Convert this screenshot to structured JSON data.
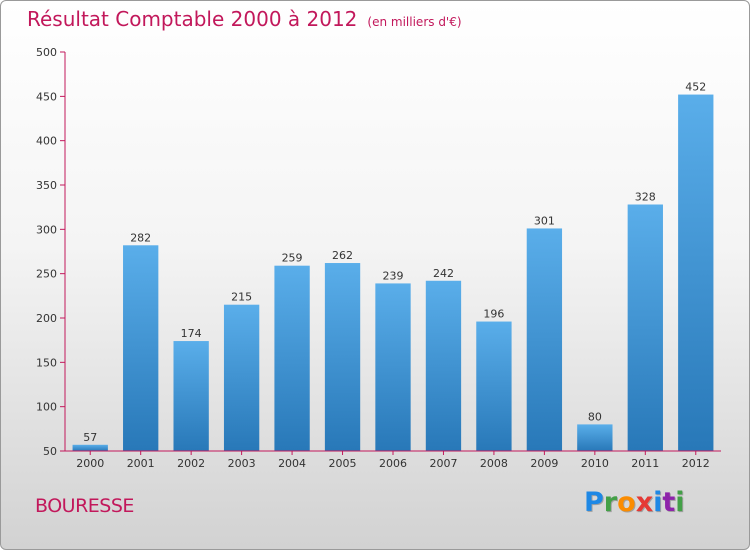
{
  "header": {
    "title": "Résultat Comptable 2000 à 2012",
    "subtitle": "(en milliers d'€)"
  },
  "footer": {
    "commune": "BOURESSE",
    "logo_letters": [
      "P",
      "r",
      "o",
      "x",
      "i",
      "t",
      "i"
    ],
    "logo_colors": [
      "#1e88e5",
      "#43a047",
      "#fb8c00",
      "#e53935",
      "#1e88e5",
      "#8e24aa",
      "#43a047"
    ]
  },
  "chart_data": {
    "type": "bar",
    "title": "Résultat Comptable 2000 à 2012",
    "subtitle": "(en milliers d'€)",
    "categories": [
      "2000",
      "2001",
      "2002",
      "2003",
      "2004",
      "2005",
      "2006",
      "2007",
      "2008",
      "2009",
      "2010",
      "2011",
      "2012"
    ],
    "values": [
      57,
      282,
      174,
      215,
      259,
      262,
      239,
      242,
      196,
      301,
      80,
      328,
      452
    ],
    "value_labels": [
      "57",
      "282",
      "174",
      "215",
      "259",
      "262",
      "239",
      "242",
      "196",
      "301",
      "80",
      "328",
      "452"
    ],
    "yticks": [
      "50",
      "100",
      "150",
      "200",
      "250",
      "300",
      "350",
      "400",
      "450",
      "500"
    ],
    "ylim": [
      50,
      500
    ],
    "grid": false,
    "bar_color_top": "#5aaeea",
    "bar_color_bottom": "#2878b8",
    "axis_color": "#c2185b"
  }
}
